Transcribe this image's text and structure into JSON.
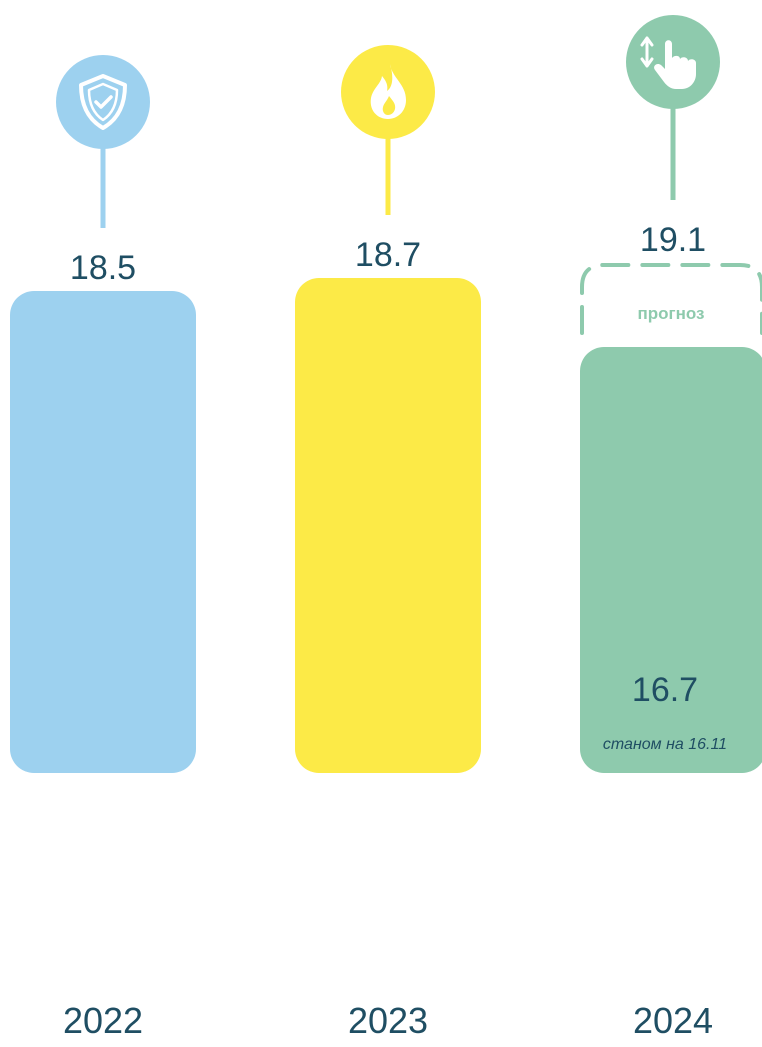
{
  "chart_data": {
    "type": "bar",
    "title": "",
    "xlabel": "",
    "ylabel": "",
    "grid": false,
    "categories": [
      "2022",
      "2023",
      "2024"
    ],
    "values": [
      18.5,
      18.7,
      16.7
    ],
    "labels": [
      "18.5",
      "18.7",
      "16.7"
    ],
    "forecast": {
      "category": "2024",
      "value": 19.1,
      "value_label": "19.1",
      "label": "прогноз"
    },
    "annotation": "станом на 16.11",
    "colors": [
      "#9dd1ef",
      "#fcea47",
      "#8ecaad"
    ],
    "icons": [
      "shield-check-icon",
      "fire-icon",
      "touch-swipe-icon"
    ],
    "text_color": "#1f4e63"
  }
}
